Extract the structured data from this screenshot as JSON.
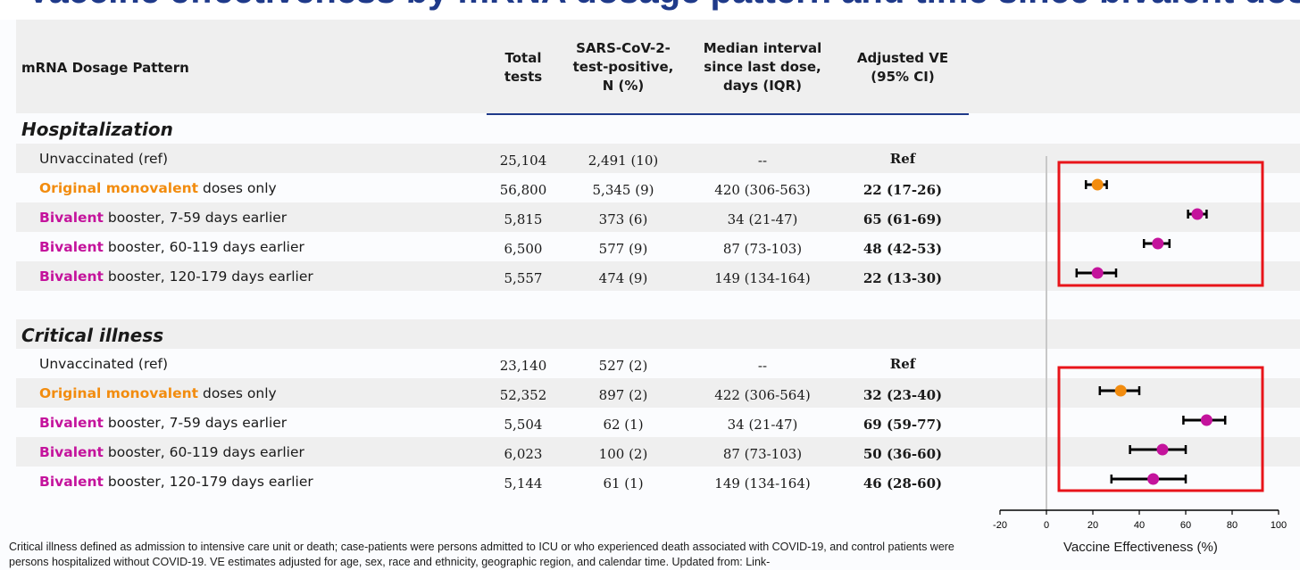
{
  "table": {
    "headers": {
      "pattern": "mRNA Dosage Pattern",
      "total": [
        "Total",
        "tests"
      ],
      "positive": [
        "SARS-CoV-2-",
        "test-positive,",
        "N (%)"
      ],
      "interval": [
        "Median interval",
        "since last dose,",
        "days (IQR)"
      ],
      "ve": [
        "Adjusted VE",
        "(95% CI)"
      ]
    },
    "sections": [
      {
        "title": "Hospitalization",
        "rows": [
          {
            "hl": "",
            "rest": "Unvaccinated (ref)",
            "total": "25,104",
            "positive": "2,491 (10)",
            "interval": "--",
            "ve": "Ref"
          },
          {
            "hl": "Original monovalent",
            "rest": " doses only",
            "total": "56,800",
            "positive": "5,345 (9)",
            "interval": "420 (306-563)",
            "ve": "22 (17-26)"
          },
          {
            "hl": "Bivalent",
            "rest": " booster, 7-59 days earlier",
            "total": "5,815",
            "positive": "373 (6)",
            "interval": "34 (21-47)",
            "ve": "65 (61-69)"
          },
          {
            "hl": "Bivalent",
            "rest": " booster, 60-119 days earlier",
            "total": "6,500",
            "positive": "577 (9)",
            "interval": "87 (73-103)",
            "ve": "48 (42-53)"
          },
          {
            "hl": "Bivalent",
            "rest": " booster, 120-179 days earlier",
            "total": "5,557",
            "positive": "474 (9)",
            "interval": "149 (134-164)",
            "ve": "22 (13-30)"
          }
        ]
      },
      {
        "title": "Critical illness",
        "rows": [
          {
            "hl": "",
            "rest": "Unvaccinated (ref)",
            "total": "23,140",
            "positive": "527 (2)",
            "interval": "--",
            "ve": "Ref"
          },
          {
            "hl": "Original monovalent",
            "rest": " doses only",
            "total": "52,352",
            "positive": "897 (2)",
            "interval": "422 (306-564)",
            "ve": "32 (23-40)"
          },
          {
            "hl": "Bivalent",
            "rest": " booster, 7-59 days earlier",
            "total": "5,504",
            "positive": "62 (1)",
            "interval": "34 (21-47)",
            "ve": "69 (59-77)"
          },
          {
            "hl": "Bivalent",
            "rest": " booster, 60-119 days earlier",
            "total": "6,023",
            "positive": "100 (2)",
            "interval": "87 (73-103)",
            "ve": "50 (36-60)"
          },
          {
            "hl": "Bivalent",
            "rest": " booster, 120-179 days earlier",
            "total": "5,144",
            "positive": "61 (1)",
            "interval": "149 (134-164)",
            "ve": "46 (28-60)"
          }
        ]
      }
    ]
  },
  "colors": {
    "orange": "#f28c0f",
    "magenta": "#c4139c",
    "highlight_box": "#e8141a",
    "header_rule": "#1f3a8a"
  },
  "footnote": "Critical illness defined as admission to intensive care unit or death; case-patients were persons admitted to ICU or who experienced death associated with COVID-19, and control patients were persons hospitalized without COVID-19. VE estimates adjusted for age, sex, race and ethnicity, geographic region, and calendar time. Updated from: Link-",
  "chart_data": {
    "type": "scatter",
    "xlabel": "Vaccine Effectiveness (%)",
    "xlim": [
      -20,
      100
    ],
    "xticks": [
      "-20",
      "0",
      "20",
      "40",
      "60",
      "80",
      "100"
    ],
    "series": [
      {
        "group": "Hospitalization",
        "category": "Original monovalent",
        "color": "#f28c0f",
        "ve": 22,
        "lo": 17,
        "hi": 26
      },
      {
        "group": "Hospitalization",
        "category": "Bivalent 7-59",
        "color": "#c4139c",
        "ve": 65,
        "lo": 61,
        "hi": 69
      },
      {
        "group": "Hospitalization",
        "category": "Bivalent 60-119",
        "color": "#c4139c",
        "ve": 48,
        "lo": 42,
        "hi": 53
      },
      {
        "group": "Hospitalization",
        "category": "Bivalent 120-179",
        "color": "#c4139c",
        "ve": 22,
        "lo": 13,
        "hi": 30
      },
      {
        "group": "Critical illness",
        "category": "Original monovalent",
        "color": "#f28c0f",
        "ve": 32,
        "lo": 23,
        "hi": 40
      },
      {
        "group": "Critical illness",
        "category": "Bivalent 7-59",
        "color": "#c4139c",
        "ve": 69,
        "lo": 59,
        "hi": 77
      },
      {
        "group": "Critical illness",
        "category": "Bivalent 60-119",
        "color": "#c4139c",
        "ve": 50,
        "lo": 36,
        "hi": 60
      },
      {
        "group": "Critical illness",
        "category": "Bivalent 120-179",
        "color": "#c4139c",
        "ve": 46,
        "lo": 28,
        "hi": 60
      }
    ]
  }
}
